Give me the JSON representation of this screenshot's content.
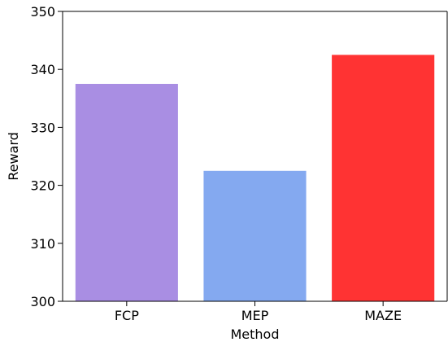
{
  "chart_data": {
    "type": "bar",
    "categories": [
      "FCP",
      "MEP",
      "MAZE"
    ],
    "values": [
      337.5,
      322.5,
      342.5
    ],
    "colors": [
      "#a98ee3",
      "#84a9f0",
      "#ff3333"
    ],
    "xlabel": "Method",
    "ylabel": "Reward",
    "ylim": [
      300,
      350
    ],
    "yticks": [
      300,
      310,
      320,
      330,
      340,
      350
    ],
    "grid": false,
    "legend": "none"
  }
}
